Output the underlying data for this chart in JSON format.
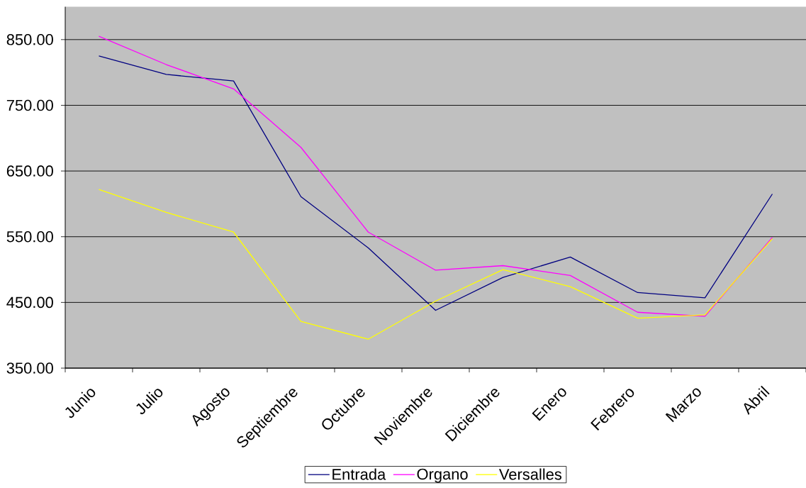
{
  "chart_data": {
    "type": "line",
    "categories": [
      "Junio",
      "Julio",
      "Agosto",
      "Septiembre",
      "Octubre",
      "Noviembre",
      "Diciembre",
      "Enero",
      "Febrero",
      "Marzo",
      "Abril"
    ],
    "series": [
      {
        "name": "Entrada",
        "color": "#000080",
        "values": [
          825,
          797,
          787,
          611,
          533,
          438,
          488,
          519,
          465,
          457,
          615
        ]
      },
      {
        "name": "Organo",
        "color": "#ff00ff",
        "values": [
          855,
          812,
          775,
          686,
          557,
          499,
          506,
          491,
          435,
          429,
          549
        ]
      },
      {
        "name": "Versalles",
        "color": "#ffff00",
        "values": [
          622,
          587,
          557,
          421,
          394,
          452,
          500,
          474,
          426,
          431,
          547
        ]
      }
    ],
    "ylim": [
      350,
      900
    ],
    "yticks": [
      {
        "value": 350,
        "label": "350.00"
      },
      {
        "value": 450,
        "label": "450.00"
      },
      {
        "value": 550,
        "label": "550.00"
      },
      {
        "value": 650,
        "label": "650.00"
      },
      {
        "value": 750,
        "label": "750.00"
      },
      {
        "value": 850,
        "label": "850.00"
      }
    ],
    "grid": "y",
    "legend": "bottom",
    "line_style": "solid",
    "marker": "none"
  }
}
